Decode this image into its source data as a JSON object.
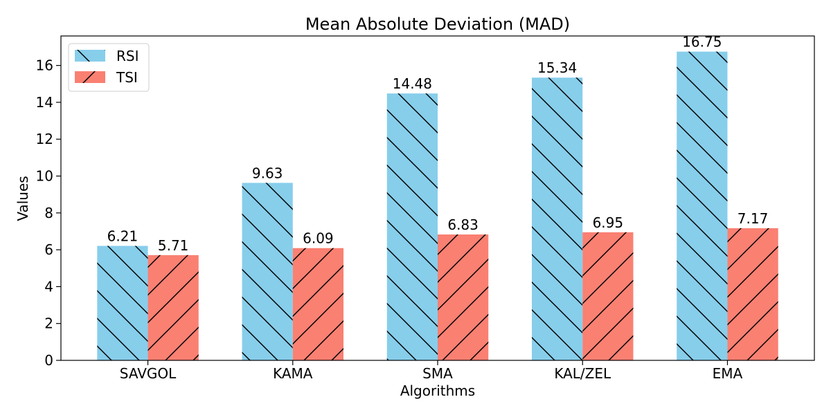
{
  "chart_data": {
    "type": "bar",
    "title": "Mean Absolute Deviation (MAD)",
    "xlabel": "Algorithms",
    "ylabel": "Values",
    "categories": [
      "SAVGOL",
      "KAMA",
      "SMA",
      "KAL/ZEL",
      "EMA"
    ],
    "series": [
      {
        "name": "RSI",
        "values": [
          6.21,
          9.63,
          14.48,
          15.34,
          16.75
        ],
        "color": "#87CEEB",
        "hatch": "backslash"
      },
      {
        "name": "TSI",
        "values": [
          5.71,
          6.09,
          6.83,
          6.95,
          7.17
        ],
        "color": "#FA8072",
        "hatch": "slash"
      }
    ],
    "ylim": [
      0,
      17.6
    ],
    "yticks": [
      0,
      2,
      4,
      6,
      8,
      10,
      12,
      14,
      16
    ],
    "grid": false,
    "legend_position": "top-left"
  }
}
